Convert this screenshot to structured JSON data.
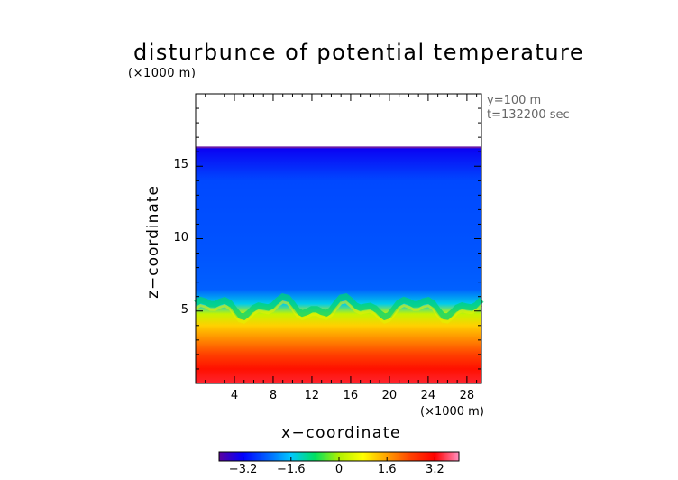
{
  "chart_data": {
    "type": "heatmap",
    "title": "disturbunce of potential temperature",
    "ylabel": "z−coordinate",
    "xlabel": "x−coordinate",
    "y_unit_label": "(×1000 m)",
    "x_unit_label": "(×1000 m)",
    "annotations": [
      "y=100 m",
      "t=132200 sec"
    ],
    "xlim": [
      0,
      29.5
    ],
    "ylim": [
      0,
      20
    ],
    "x_ticks": [
      4,
      8,
      12,
      16,
      20,
      24,
      28
    ],
    "x_tick_labels": [
      "4",
      "8",
      "12",
      "16",
      "20",
      "24",
      "28"
    ],
    "y_ticks": [
      5,
      10,
      15
    ],
    "y_tick_labels": [
      "5",
      "10",
      "15"
    ],
    "data_top_z": 16.3,
    "colorbar": {
      "range": [
        -4,
        4
      ],
      "ticks": [
        -3.2,
        -1.6,
        0,
        1.6,
        3.2
      ],
      "tick_labels": [
        "−3.2",
        "−1.6",
        "0",
        "1.6",
        "3.2"
      ],
      "colors": [
        "#5a00a0",
        "#0000ff",
        "#0060ff",
        "#00c8ff",
        "#00e060",
        "#b0f000",
        "#ffff00",
        "#ffa000",
        "#ff4000",
        "#ff0000",
        "#ff90c0"
      ]
    },
    "field_profile": [
      {
        "z": 0.0,
        "value": 3.4
      },
      {
        "z": 1.0,
        "value": 3.0
      },
      {
        "z": 2.0,
        "value": 2.4
      },
      {
        "z": 3.0,
        "value": 1.8
      },
      {
        "z": 4.0,
        "value": 1.2
      },
      {
        "z": 4.8,
        "value": 0.2
      },
      {
        "z": 5.5,
        "value": -1.5
      },
      {
        "z": 6.5,
        "value": -2.4
      },
      {
        "z": 9.0,
        "value": -2.5
      },
      {
        "z": 14.0,
        "value": -2.6
      },
      {
        "z": 16.3,
        "value": -3.3
      }
    ],
    "grid": false
  }
}
